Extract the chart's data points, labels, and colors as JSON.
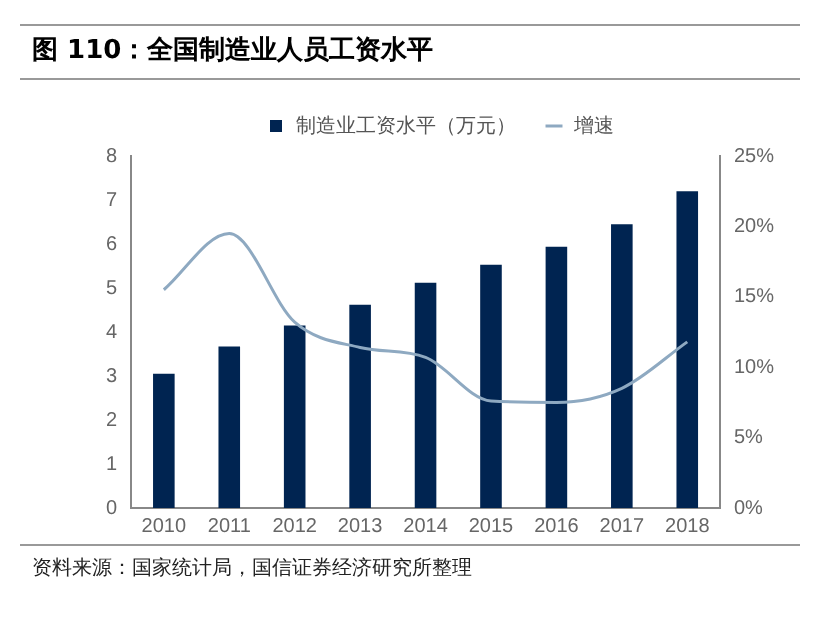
{
  "chart_data": {
    "type": "bar",
    "title": "图 110：全国制造业人员工资水平",
    "categories": [
      "2010",
      "2011",
      "2012",
      "2013",
      "2014",
      "2015",
      "2016",
      "2017",
      "2018"
    ],
    "series": [
      {
        "name": "制造业工资水平（万元）",
        "color": "#002451",
        "values": [
          3.05,
          3.67,
          4.15,
          4.62,
          5.12,
          5.53,
          5.94,
          6.45,
          7.2
        ]
      },
      {
        "name": "增速",
        "type": "line",
        "axis": "y2",
        "color": "#8ea9c1",
        "marker": "none",
        "values": [
          15.5,
          19.5,
          13.2,
          11.4,
          10.7,
          7.6,
          7.5,
          8.5,
          11.8
        ]
      }
    ],
    "ylim": [
      0,
      8
    ],
    "yticks": [
      0,
      1,
      2,
      3,
      4,
      5,
      6,
      7,
      8
    ],
    "y2lim": [
      0,
      25
    ],
    "y2ticks": [
      {
        "value": 0,
        "label": "0%"
      },
      {
        "value": 5,
        "label": "5%"
      },
      {
        "value": 10,
        "label": "10%"
      },
      {
        "value": 15,
        "label": "15%"
      },
      {
        "value": 20,
        "label": "20%"
      },
      {
        "value": 25,
        "label": "25%"
      }
    ],
    "grid": false,
    "legend": "top",
    "annotations": [
      "资料来源：国家统计局，国信证券经济研究所整理"
    ]
  }
}
